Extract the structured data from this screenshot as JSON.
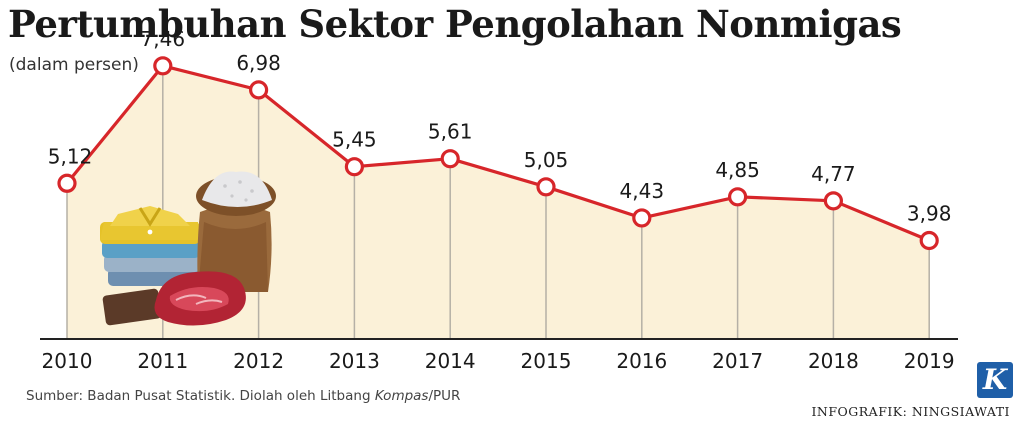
{
  "title": "Pertumbuhan Sektor Pengolahan Nonmigas",
  "subtitle": "(dalam persen)",
  "source": {
    "prefix": "Sumber: Badan Pusat Statistik. Diolah oleh Litbang ",
    "italic": "Kompas",
    "suffix": "/PUR"
  },
  "credit": "INFOGRAFIK: NINGSIAWATI",
  "logo_letter": "K",
  "colors": {
    "line": "#d7262a",
    "fill": "#fbf1d8",
    "marker_fill": "#ffffff",
    "grid": "#b5b0a6",
    "logo": "#1f5fa8"
  },
  "chart_data": {
    "type": "area",
    "x": [
      "2010",
      "2011",
      "2012",
      "2013",
      "2014",
      "2015",
      "2016",
      "2017",
      "2018",
      "2019"
    ],
    "values": [
      5.12,
      7.46,
      6.98,
      5.45,
      5.61,
      5.05,
      4.43,
      4.85,
      4.77,
      3.98
    ],
    "value_labels": [
      "5,12",
      "7,46",
      "6,98",
      "5,45",
      "5,61",
      "5,05",
      "4,43",
      "4,85",
      "4,77",
      "3,98"
    ],
    "title": "Pertumbuhan Sektor Pengolahan Nonmigas",
    "ylabel": "(dalam persen)",
    "grid": "vertical"
  }
}
